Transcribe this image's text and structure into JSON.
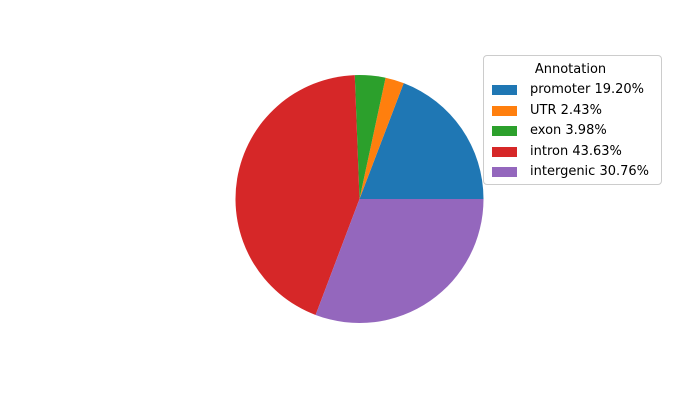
{
  "chart_data": {
    "type": "pie",
    "legend_title": "Annotation",
    "start_angle_deg": 0,
    "direction": "counterclockwise",
    "legend_position": "upper right",
    "background_color": "#ffffff",
    "legend_border_color": "#cccccc",
    "series": [
      {
        "label": "promoter",
        "value": 19.2,
        "color": "#1f77b4",
        "legend_label": "promoter 19.20%"
      },
      {
        "label": "UTR",
        "value": 2.43,
        "color": "#ff7f0e",
        "legend_label": "UTR 2.43%"
      },
      {
        "label": "exon",
        "value": 3.98,
        "color": "#2ca02c",
        "legend_label": "exon 3.98%"
      },
      {
        "label": "intron",
        "value": 43.63,
        "color": "#d62728",
        "legend_label": "intron 43.63%"
      },
      {
        "label": "intergenic",
        "value": 30.76,
        "color": "#9467bd",
        "legend_label": "intergenic 30.76%"
      }
    ]
  }
}
